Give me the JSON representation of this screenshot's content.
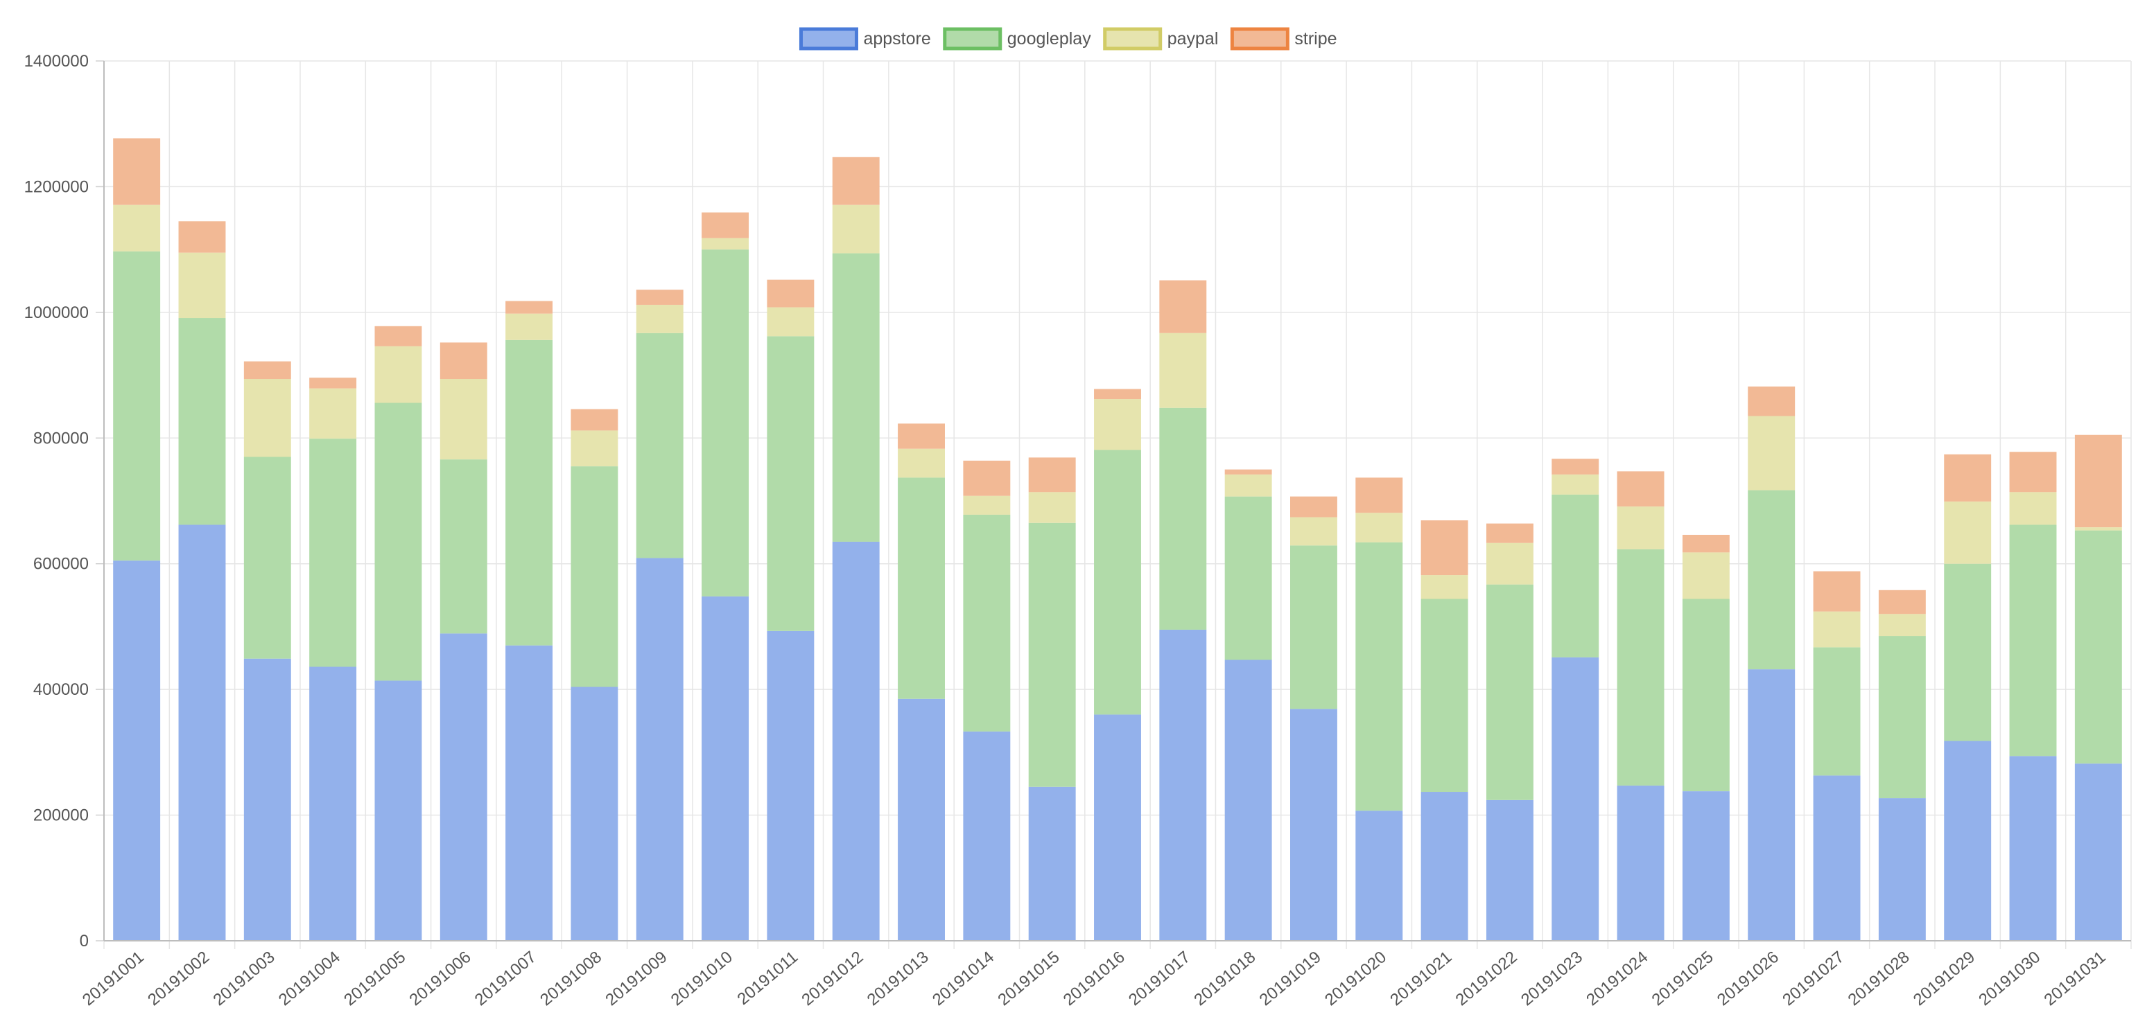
{
  "chart_data": {
    "type": "bar",
    "stacked": true,
    "title": "",
    "xlabel": "",
    "ylabel": "",
    "ylim": [
      0,
      1400000
    ],
    "yticks": [
      0,
      200000,
      400000,
      600000,
      800000,
      1000000,
      1200000,
      1400000
    ],
    "ytick_labels": [
      "0",
      "200000",
      "400000",
      "600000",
      "800000",
      "1000000",
      "1200000",
      "1400000"
    ],
    "grid": true,
    "legend_position": "top-center",
    "categories": [
      "20191001",
      "20191002",
      "20191003",
      "20191004",
      "20191005",
      "20191006",
      "20191007",
      "20191008",
      "20191009",
      "20191010",
      "20191011",
      "20191012",
      "20191013",
      "20191014",
      "20191015",
      "20191016",
      "20191017",
      "20191018",
      "20191019",
      "20191020",
      "20191021",
      "20191022",
      "20191023",
      "20191024",
      "20191025",
      "20191026",
      "20191027",
      "20191028",
      "20191029",
      "20191030",
      "20191031"
    ],
    "series": [
      {
        "name": "appstore",
        "fill": "#93b1eb",
        "border": "#4a7bd9",
        "values": [
          605000,
          662000,
          449000,
          436000,
          414000,
          489000,
          470000,
          404000,
          609000,
          548000,
          493000,
          635000,
          385000,
          333000,
          245000,
          360000,
          495000,
          447000,
          369000,
          207000,
          237000,
          224000,
          451000,
          247000,
          238000,
          432000,
          263000,
          227000,
          318000,
          294000,
          282000
        ]
      },
      {
        "name": "googleplay",
        "fill": "#b1dba9",
        "border": "#6cbf63",
        "values": [
          492000,
          329000,
          321000,
          363000,
          442000,
          277000,
          486000,
          351000,
          358000,
          552000,
          469000,
          459000,
          352000,
          345000,
          420000,
          421000,
          353000,
          260000,
          260000,
          427000,
          307000,
          343000,
          259000,
          376000,
          306000,
          285000,
          204000,
          258000,
          282000,
          368000,
          371000
        ]
      },
      {
        "name": "paypal",
        "fill": "#e6e4ae",
        "border": "#d1cc66",
        "values": [
          74000,
          104000,
          124000,
          80000,
          90000,
          128000,
          42000,
          57000,
          45000,
          18000,
          46000,
          77000,
          46000,
          30000,
          49000,
          81000,
          119000,
          35000,
          45000,
          47000,
          38000,
          66000,
          32000,
          68000,
          74000,
          118000,
          57000,
          35000,
          99000,
          52000,
          5000
        ]
      },
      {
        "name": "stripe",
        "fill": "#f2b995",
        "border": "#ed8441",
        "values": [
          106000,
          50000,
          28000,
          17000,
          32000,
          58000,
          20000,
          34000,
          24000,
          41000,
          44000,
          76000,
          40000,
          56000,
          55000,
          16000,
          84000,
          8000,
          33000,
          56000,
          87000,
          31000,
          25000,
          56000,
          28000,
          47000,
          64000,
          38000,
          75000,
          64000,
          147000
        ]
      }
    ]
  }
}
